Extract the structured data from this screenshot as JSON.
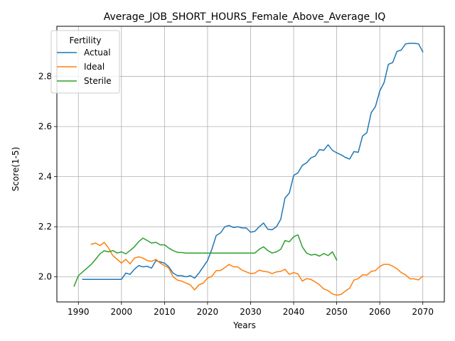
{
  "chart_data": {
    "type": "line",
    "title": "Average_JOB_SHORT_HOURS_Female_Above_Average_IQ",
    "xlabel": "Years",
    "ylabel": "Score(1-5)",
    "xlim": [
      1985,
      2075
    ],
    "ylim": [
      1.9,
      3.0
    ],
    "xticks": [
      1990,
      2000,
      2010,
      2020,
      2030,
      2040,
      2050,
      2060,
      2070
    ],
    "yticks": [
      2.0,
      2.2,
      2.4,
      2.6,
      2.8
    ],
    "ytick_labels": [
      "2.0",
      "2.2",
      "2.4",
      "2.6",
      "2.8"
    ],
    "grid": true,
    "legend": {
      "title": "Fertility",
      "position": "top-left"
    },
    "series": [
      {
        "name": "Actual",
        "color": "#1f77b4",
        "x": [
          1991,
          1992,
          1993,
          1994,
          1995,
          1996,
          1997,
          1998,
          1999,
          2000,
          2001,
          2002,
          2003,
          2004,
          2005,
          2006,
          2007,
          2008,
          2009,
          2010,
          2011,
          2012,
          2013,
          2014,
          2015,
          2016,
          2017,
          2018,
          2019,
          2020,
          2021,
          2022,
          2023,
          2024,
          2025,
          2026,
          2027,
          2028,
          2029,
          2030,
          2031,
          2032,
          2033,
          2034,
          2035,
          2036,
          2037,
          2038,
          2039,
          2040,
          2041,
          2042,
          2043,
          2044,
          2045,
          2046,
          2047,
          2048,
          2049,
          2050,
          2051,
          2052,
          2053,
          2054,
          2055,
          2056,
          2057,
          2058,
          2059,
          2060,
          2061,
          2062,
          2063,
          2064,
          2065,
          2066,
          2067,
          2068,
          2069,
          2070
        ],
        "y": [
          1.99,
          1.99,
          1.99,
          1.99,
          1.99,
          1.99,
          1.99,
          1.99,
          1.99,
          1.99,
          2.015,
          2.01,
          2.03,
          2.045,
          2.04,
          2.042,
          2.035,
          2.065,
          2.06,
          2.055,
          2.04,
          2.015,
          2.005,
          2.005,
          2.0,
          2.005,
          1.995,
          2.015,
          2.04,
          2.065,
          2.11,
          2.165,
          2.175,
          2.2,
          2.205,
          2.197,
          2.2,
          2.195,
          2.195,
          2.178,
          2.182,
          2.2,
          2.215,
          2.19,
          2.188,
          2.2,
          2.23,
          2.315,
          2.335,
          2.405,
          2.415,
          2.445,
          2.455,
          2.475,
          2.482,
          2.508,
          2.505,
          2.527,
          2.505,
          2.495,
          2.487,
          2.477,
          2.47,
          2.5,
          2.497,
          2.562,
          2.575,
          2.655,
          2.68,
          2.742,
          2.775,
          2.848,
          2.855,
          2.9,
          2.905,
          2.93,
          2.932,
          2.932,
          2.93,
          2.898
        ]
      },
      {
        "name": "Ideal",
        "color": "#ff7f0e",
        "x": [
          1993,
          1994,
          1995,
          1996,
          1997,
          1998,
          1999,
          2000,
          2001,
          2002,
          2003,
          2004,
          2005,
          2006,
          2007,
          2008,
          2009,
          2010,
          2011,
          2012,
          2013,
          2014,
          2015,
          2016,
          2017,
          2018,
          2019,
          2020,
          2021,
          2022,
          2023,
          2024,
          2025,
          2026,
          2027,
          2028,
          2029,
          2030,
          2031,
          2032,
          2033,
          2034,
          2035,
          2036,
          2037,
          2038,
          2039,
          2040,
          2041,
          2042,
          2043,
          2044,
          2045,
          2046,
          2047,
          2048,
          2049,
          2050,
          2051,
          2052,
          2053,
          2054,
          2055,
          2056,
          2057,
          2058,
          2059,
          2060,
          2061,
          2062,
          2063,
          2064,
          2065,
          2066,
          2067,
          2068,
          2069,
          2070
        ],
        "y": [
          2.13,
          2.135,
          2.125,
          2.138,
          2.115,
          2.085,
          2.07,
          2.055,
          2.07,
          2.052,
          2.075,
          2.08,
          2.075,
          2.065,
          2.062,
          2.07,
          2.055,
          2.045,
          2.035,
          2.0,
          1.987,
          1.983,
          1.975,
          1.968,
          1.948,
          1.968,
          1.975,
          1.995,
          2.002,
          2.025,
          2.025,
          2.037,
          2.05,
          2.04,
          2.04,
          2.027,
          2.02,
          2.013,
          2.015,
          2.027,
          2.022,
          2.02,
          2.013,
          2.02,
          2.022,
          2.03,
          2.01,
          2.017,
          2.012,
          1.983,
          1.993,
          1.99,
          1.98,
          1.968,
          1.952,
          1.945,
          1.932,
          1.927,
          1.93,
          1.943,
          1.955,
          1.987,
          1.993,
          2.008,
          2.007,
          2.022,
          2.025,
          2.042,
          2.05,
          2.05,
          2.043,
          2.032,
          2.017,
          2.008,
          1.992,
          1.992,
          1.988,
          2.003
        ]
      },
      {
        "name": "Sterile",
        "color": "#2ca02c",
        "x": [
          1989,
          1990,
          1991,
          1992,
          1993,
          1994,
          1995,
          1996,
          1997,
          1998,
          1999,
          2000,
          2001,
          2002,
          2003,
          2004,
          2005,
          2006,
          2007,
          2008,
          2009,
          2010,
          2011,
          2012,
          2013,
          2014,
          2015,
          2016,
          2017,
          2018,
          2019,
          2020,
          2021,
          2022,
          2023,
          2024,
          2025,
          2026,
          2027,
          2028,
          2029,
          2030,
          2031,
          2032,
          2033,
          2034,
          2035,
          2036,
          2037,
          2038,
          2039,
          2040,
          2041,
          2042,
          2043,
          2044,
          2045,
          2046,
          2047,
          2048,
          2049,
          2050
        ],
        "y": [
          1.963,
          2.005,
          2.02,
          2.035,
          2.05,
          2.07,
          2.092,
          2.104,
          2.1,
          2.105,
          2.095,
          2.1,
          2.092,
          2.105,
          2.12,
          2.14,
          2.155,
          2.145,
          2.135,
          2.138,
          2.128,
          2.128,
          2.115,
          2.105,
          2.098,
          2.097,
          2.095,
          2.095,
          2.095,
          2.095,
          2.095,
          2.095,
          2.095,
          2.095,
          2.095,
          2.095,
          2.095,
          2.095,
          2.095,
          2.095,
          2.095,
          2.095,
          2.095,
          2.11,
          2.12,
          2.105,
          2.095,
          2.1,
          2.11,
          2.145,
          2.14,
          2.16,
          2.168,
          2.12,
          2.095,
          2.087,
          2.09,
          2.083,
          2.093,
          2.085,
          2.1,
          2.067
        ]
      }
    ]
  }
}
